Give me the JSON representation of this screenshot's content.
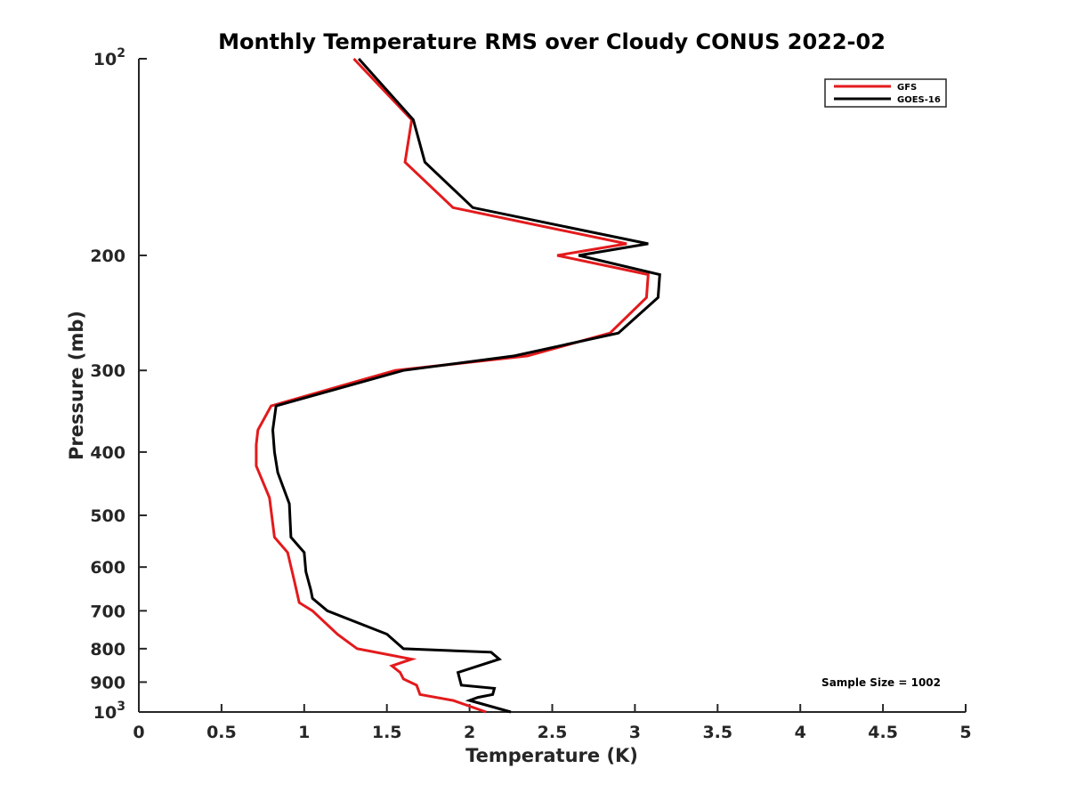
{
  "chart_data": {
    "type": "line",
    "title": "Monthly Temperature RMS over Cloudy CONUS  2022-02",
    "xlabel": "Temperature (K)",
    "ylabel": "Pressure (mb)",
    "xlim": [
      0,
      5
    ],
    "ylim": [
      100,
      1000
    ],
    "y_scale": "log",
    "y_direction": "reversed",
    "x_ticks": [
      "0",
      "0.5",
      "1",
      "1.5",
      "2",
      "2.5",
      "3",
      "3.5",
      "4",
      "4.5",
      "5"
    ],
    "y_ticks": [
      {
        "value": 100,
        "label": "10",
        "sup": "2"
      },
      {
        "value": 200,
        "label": "200"
      },
      {
        "value": 300,
        "label": "300"
      },
      {
        "value": 400,
        "label": "400"
      },
      {
        "value": 500,
        "label": "500"
      },
      {
        "value": 600,
        "label": "600"
      },
      {
        "value": 700,
        "label": "700"
      },
      {
        "value": 800,
        "label": "800"
      },
      {
        "value": 900,
        "label": "900"
      },
      {
        "value": 1000,
        "label": "10",
        "sup": "3"
      }
    ],
    "grid": false,
    "legend_position": "top-right",
    "annotation": "Sample Size = 1002",
    "series": [
      {
        "name": "GFS",
        "color": "#e31a1c",
        "points": [
          [
            1.3,
            100
          ],
          [
            1.65,
            124
          ],
          [
            1.61,
            144
          ],
          [
            1.9,
            169
          ],
          [
            2.95,
            192
          ],
          [
            2.53,
            200
          ],
          [
            3.08,
            214
          ],
          [
            3.07,
            232
          ],
          [
            2.85,
            263
          ],
          [
            2.35,
            285
          ],
          [
            1.55,
            300
          ],
          [
            0.8,
            340
          ],
          [
            0.72,
            370
          ],
          [
            0.71,
            390
          ],
          [
            0.71,
            420
          ],
          [
            0.79,
            470
          ],
          [
            0.82,
            540
          ],
          [
            0.9,
            570
          ],
          [
            0.94,
            630
          ],
          [
            0.97,
            680
          ],
          [
            1.05,
            700
          ],
          [
            1.2,
            760
          ],
          [
            1.32,
            800
          ],
          [
            1.65,
            830
          ],
          [
            1.53,
            850
          ],
          [
            1.58,
            870
          ],
          [
            1.6,
            890
          ],
          [
            1.68,
            910
          ],
          [
            1.7,
            940
          ],
          [
            1.9,
            960
          ],
          [
            2.1,
            1000
          ]
        ]
      },
      {
        "name": "GOES-16",
        "color": "#000000",
        "points": [
          [
            1.33,
            100
          ],
          [
            1.66,
            124
          ],
          [
            1.73,
            144
          ],
          [
            2.02,
            169
          ],
          [
            3.08,
            192
          ],
          [
            2.66,
            200
          ],
          [
            3.15,
            214
          ],
          [
            3.14,
            232
          ],
          [
            2.9,
            263
          ],
          [
            2.27,
            285
          ],
          [
            1.6,
            300
          ],
          [
            0.83,
            340
          ],
          [
            0.81,
            370
          ],
          [
            0.82,
            400
          ],
          [
            0.84,
            430
          ],
          [
            0.91,
            480
          ],
          [
            0.92,
            540
          ],
          [
            1.0,
            570
          ],
          [
            1.01,
            610
          ],
          [
            1.04,
            650
          ],
          [
            1.05,
            670
          ],
          [
            1.14,
            700
          ],
          [
            1.5,
            760
          ],
          [
            1.6,
            800
          ],
          [
            2.13,
            810
          ],
          [
            2.18,
            830
          ],
          [
            1.93,
            870
          ],
          [
            1.95,
            910
          ],
          [
            2.15,
            920
          ],
          [
            2.14,
            940
          ],
          [
            2.05,
            950
          ],
          [
            2.0,
            960
          ],
          [
            2.25,
            1000
          ]
        ]
      }
    ]
  }
}
